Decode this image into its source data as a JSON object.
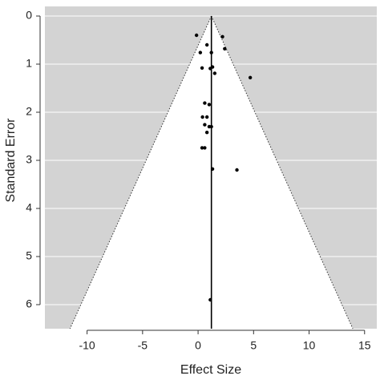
{
  "chart_data": {
    "type": "funnel",
    "x_label": "Effect Size",
    "y_label": "Standard Error",
    "x": [
      -0.14,
      2.2,
      0.8,
      2.4,
      0.2,
      1.2,
      0.36,
      1.1,
      1.3,
      1.5,
      4.7,
      0.6,
      1.0,
      0.4,
      0.8,
      0.6,
      1.0,
      1.2,
      0.8,
      0.36,
      0.6,
      1.3,
      3.5,
      1.1
    ],
    "values": [
      0.4,
      0.43,
      0.6,
      0.68,
      0.76,
      0.76,
      1.08,
      1.09,
      1.06,
      1.19,
      1.28,
      1.81,
      1.84,
      2.1,
      2.1,
      2.26,
      2.3,
      2.3,
      2.42,
      2.74,
      2.74,
      3.18,
      3.2,
      5.9
    ],
    "summary_effect": 1.2,
    "ci_multiplier": 1.96,
    "xlim": [
      -13.8,
      16.1
    ],
    "xticks": [
      -10,
      -5,
      0,
      5,
      10,
      15
    ],
    "ylim": [
      -0.2,
      6.5
    ],
    "yticks": [
      0,
      1,
      2,
      3,
      4,
      5,
      6
    ],
    "y_reversed": true,
    "grid": true,
    "background_color": "#d3d3d3",
    "funnel_color": "#ffffff",
    "color": "#000000"
  }
}
